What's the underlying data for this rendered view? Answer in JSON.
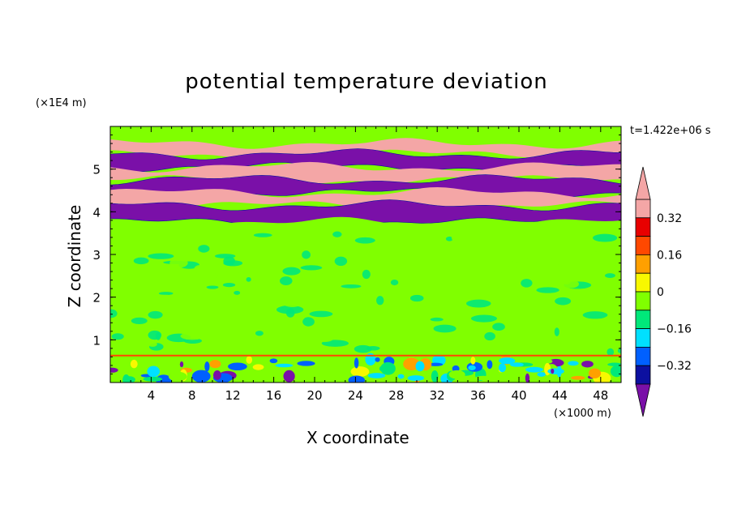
{
  "chart_data": {
    "type": "heatmap",
    "title": "potential temperature deviation",
    "xlabel": "X coordinate",
    "ylabel": "Z coordinate",
    "x_unit": "(×1000 m)",
    "z_unit": "(×1E4 m)",
    "time_label": "t=1.422e+06 s",
    "xlim": [
      0,
      50
    ],
    "ylim": [
      0,
      6
    ],
    "x_ticks": [
      "4",
      "8",
      "12",
      "16",
      "20",
      "24",
      "28",
      "32",
      "36",
      "40",
      "44",
      "48"
    ],
    "y_ticks": [
      "1",
      "2",
      "3",
      "4",
      "5"
    ],
    "colorbar": {
      "levels": [
        -0.4,
        -0.32,
        -0.24,
        -0.16,
        -0.08,
        0,
        0.08,
        0.16,
        0.24,
        0.32,
        0.4
      ],
      "colors": [
        "#7a10a8",
        "#0c10a0",
        "#0060ff",
        "#00e0ff",
        "#00e87a",
        "#80ff00",
        "#f8f800",
        "#ffa000",
        "#ff4800",
        "#e80000",
        "#f4a6a6"
      ],
      "tick_labels": [
        "0.32",
        "0.16",
        "0",
        "−0.16",
        "−0.32"
      ]
    },
    "layers": [
      {
        "z_from": 5.6,
        "z_to": 6.0,
        "description": "background near zero",
        "value": 0.04
      },
      {
        "z_from": 5.35,
        "z_to": 5.6,
        "value": 0.44
      },
      {
        "z_from": 5.05,
        "z_to": 5.35,
        "value": -0.44
      },
      {
        "z_from": 4.75,
        "z_to": 5.05,
        "value": 0.44
      },
      {
        "z_from": 4.45,
        "z_to": 4.75,
        "value": -0.44
      },
      {
        "z_from": 4.15,
        "z_to": 4.45,
        "value": 0.44
      },
      {
        "z_from": 3.75,
        "z_to": 4.15,
        "value": -0.44
      },
      {
        "z_from": 0.6,
        "z_to": 3.75,
        "value": 0.0
      },
      {
        "z_from": 0.0,
        "z_to": 0.6,
        "value": 0.0
      }
    ]
  }
}
